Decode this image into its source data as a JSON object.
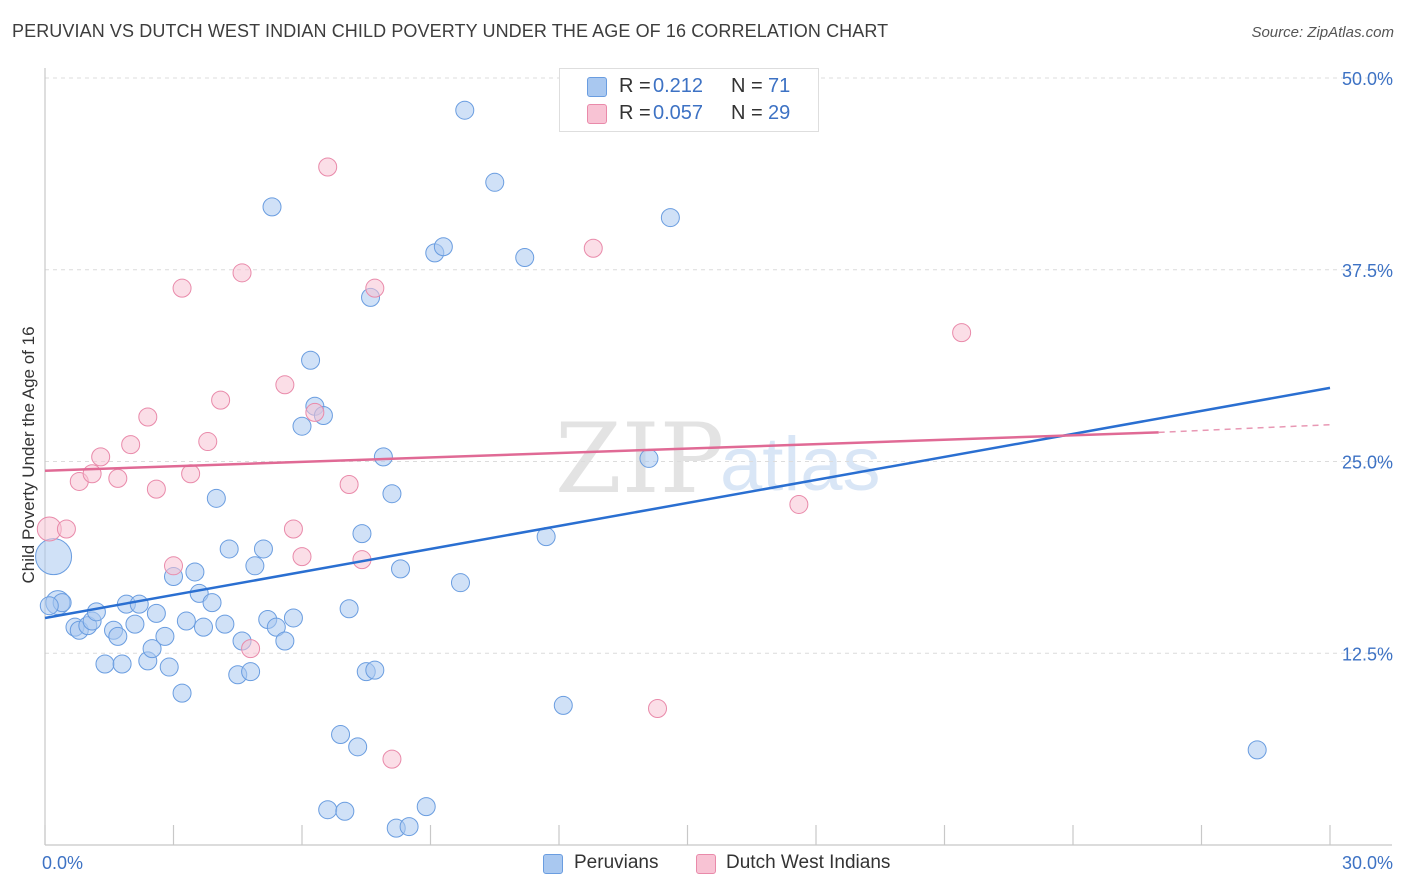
{
  "title": "PERUVIAN VS DUTCH WEST INDIAN CHILD POVERTY UNDER THE AGE OF 16 CORRELATION CHART",
  "source": "Source: ZipAtlas.com",
  "watermark": {
    "part1": "ZIP",
    "part2": "atlas"
  },
  "legend": {
    "rows": [
      {
        "r_label": "R =",
        "r_value": "0.212",
        "n_label": "N =",
        "n_value": "71",
        "color": "#a9c8f0",
        "border": "#6a9de0"
      },
      {
        "r_label": "R =",
        "r_value": "0.057",
        "n_label": "N =",
        "n_value": "29",
        "color": "#f8c3d4",
        "border": "#e98aaa"
      }
    ]
  },
  "bottom_legend": [
    {
      "label": "Peruvians",
      "color": "#a9c8f0",
      "border": "#6a9de0"
    },
    {
      "label": "Dutch West Indians",
      "color": "#f8c3d4",
      "border": "#e98aaa"
    }
  ],
  "chart_data": {
    "type": "scatter",
    "title": "PERUVIAN VS DUTCH WEST INDIAN CHILD POVERTY UNDER THE AGE OF 16 CORRELATION CHART",
    "xlabel": "",
    "ylabel": "Child Poverty Under the Age of 16",
    "xlim": [
      0,
      30
    ],
    "ylim": [
      0,
      50
    ],
    "x_tick_labels": [
      "0.0%",
      "30.0%"
    ],
    "y_ticks": [
      12.5,
      25.0,
      37.5,
      50.0
    ],
    "y_tick_labels": [
      "12.5%",
      "25.0%",
      "37.5%",
      "50.0%"
    ],
    "grid": true,
    "legend_position": "top-center",
    "series": [
      {
        "name": "Peruvians",
        "color": "#6a9de0",
        "fill": "#a9c8f0",
        "trend": {
          "x": [
            0,
            30
          ],
          "y": [
            14.8,
            29.8
          ]
        },
        "points": [
          [
            0.2,
            18.8,
            3
          ],
          [
            0.3,
            15.8,
            2
          ],
          [
            0.4,
            15.8,
            1
          ],
          [
            0.7,
            14.2,
            1
          ],
          [
            0.8,
            14.0,
            1
          ],
          [
            1.0,
            14.3,
            1
          ],
          [
            1.1,
            14.6,
            1
          ],
          [
            1.2,
            15.2,
            1
          ],
          [
            1.4,
            11.8,
            1
          ],
          [
            1.6,
            14.0,
            1
          ],
          [
            1.7,
            13.6,
            1
          ],
          [
            1.8,
            11.8,
            1
          ],
          [
            1.9,
            15.7,
            1
          ],
          [
            2.1,
            14.4,
            1
          ],
          [
            2.2,
            15.7,
            1
          ],
          [
            2.4,
            12.0,
            1
          ],
          [
            2.5,
            12.8,
            1
          ],
          [
            2.6,
            15.1,
            1
          ],
          [
            2.8,
            13.6,
            1
          ],
          [
            2.9,
            11.6,
            1
          ],
          [
            3.0,
            17.5,
            1
          ],
          [
            3.2,
            9.9,
            1
          ],
          [
            3.3,
            14.6,
            1
          ],
          [
            3.5,
            17.8,
            1
          ],
          [
            3.6,
            16.4,
            1
          ],
          [
            3.7,
            14.2,
            1
          ],
          [
            3.9,
            15.8,
            1
          ],
          [
            4.0,
            22.6,
            1
          ],
          [
            4.2,
            14.4,
            1
          ],
          [
            4.3,
            19.3,
            1
          ],
          [
            4.5,
            11.1,
            1
          ],
          [
            4.6,
            13.3,
            1
          ],
          [
            4.8,
            11.3,
            1
          ],
          [
            4.9,
            18.2,
            1
          ],
          [
            5.1,
            19.3,
            1
          ],
          [
            5.2,
            14.7,
            1
          ],
          [
            5.3,
            41.6,
            1
          ],
          [
            5.4,
            14.2,
            1
          ],
          [
            5.6,
            13.3,
            1
          ],
          [
            5.8,
            14.8,
            1
          ],
          [
            6.0,
            27.3,
            1
          ],
          [
            6.2,
            31.6,
            1
          ],
          [
            6.3,
            28.6,
            1
          ],
          [
            6.5,
            28.0,
            1
          ],
          [
            6.6,
            2.3,
            1
          ],
          [
            6.9,
            7.2,
            1
          ],
          [
            7.0,
            2.2,
            1
          ],
          [
            7.1,
            15.4,
            1
          ],
          [
            7.3,
            6.4,
            1
          ],
          [
            7.4,
            20.3,
            1
          ],
          [
            7.5,
            11.3,
            1
          ],
          [
            7.6,
            35.7,
            1
          ],
          [
            7.7,
            11.4,
            1
          ],
          [
            7.9,
            25.3,
            1
          ],
          [
            8.1,
            22.9,
            1
          ],
          [
            8.2,
            1.1,
            1
          ],
          [
            8.3,
            18.0,
            1
          ],
          [
            8.5,
            1.2,
            1
          ],
          [
            8.9,
            2.5,
            1
          ],
          [
            9.1,
            38.6,
            1
          ],
          [
            9.3,
            39.0,
            1
          ],
          [
            9.7,
            17.1,
            1
          ],
          [
            9.8,
            47.9,
            1
          ],
          [
            10.5,
            43.2,
            1
          ],
          [
            11.2,
            38.3,
            1
          ],
          [
            11.7,
            20.1,
            1
          ],
          [
            12.1,
            9.1,
            1
          ],
          [
            14.1,
            25.2,
            1
          ],
          [
            14.6,
            40.9,
            1
          ],
          [
            28.3,
            6.2,
            1
          ],
          [
            0.1,
            15.6,
            1
          ]
        ]
      },
      {
        "name": "Dutch West Indians",
        "color": "#e98aaa",
        "fill": "#f8c3d4",
        "trend": {
          "x": [
            0,
            26
          ],
          "y": [
            24.4,
            26.9
          ]
        },
        "trend_dashed": {
          "x": [
            26,
            30
          ],
          "y": [
            26.9,
            27.4
          ]
        },
        "points": [
          [
            0.1,
            20.6,
            2
          ],
          [
            0.5,
            20.6,
            1
          ],
          [
            0.8,
            23.7,
            1
          ],
          [
            1.1,
            24.2,
            1
          ],
          [
            1.3,
            25.3,
            1
          ],
          [
            1.7,
            23.9,
            1
          ],
          [
            2.0,
            26.1,
            1
          ],
          [
            2.4,
            27.9,
            1
          ],
          [
            2.6,
            23.2,
            1
          ],
          [
            3.0,
            18.2,
            1
          ],
          [
            3.2,
            36.3,
            1
          ],
          [
            3.4,
            24.2,
            1
          ],
          [
            3.8,
            26.3,
            1
          ],
          [
            4.1,
            29.0,
            1
          ],
          [
            4.6,
            37.3,
            1
          ],
          [
            4.8,
            12.8,
            1
          ],
          [
            5.6,
            30.0,
            1
          ],
          [
            5.8,
            20.6,
            1
          ],
          [
            6.0,
            18.8,
            1
          ],
          [
            6.3,
            28.2,
            1
          ],
          [
            6.6,
            44.2,
            1
          ],
          [
            7.1,
            23.5,
            1
          ],
          [
            7.4,
            18.6,
            1
          ],
          [
            7.7,
            36.3,
            1
          ],
          [
            8.1,
            5.6,
            1
          ],
          [
            12.8,
            38.9,
            1
          ],
          [
            14.3,
            8.9,
            1
          ],
          [
            17.6,
            22.2,
            1
          ],
          [
            21.4,
            33.4,
            1
          ]
        ]
      }
    ]
  }
}
